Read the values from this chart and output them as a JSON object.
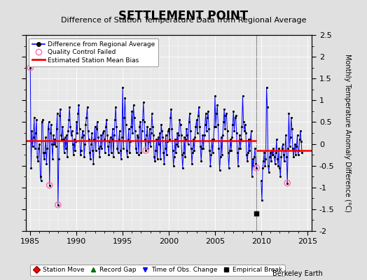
{
  "title": "SETTLEMENT POINT",
  "subtitle": "Difference of Station Temperature Data from Regional Average",
  "ylabel": "Monthly Temperature Anomaly Difference (°C)",
  "xlim": [
    1984.5,
    2015.5
  ],
  "ylim": [
    -2.0,
    2.5
  ],
  "yticks": [
    -2,
    -1.5,
    -1,
    -0.5,
    0,
    0.5,
    1,
    1.5,
    2,
    2.5
  ],
  "xticks": [
    1985,
    1990,
    1995,
    2000,
    2005,
    2010,
    2015
  ],
  "break_year": 2009.5,
  "bias1": 0.07,
  "bias2": -0.15,
  "bias1_start": 1984.5,
  "bias1_end": 2009.5,
  "bias2_start": 2009.5,
  "bias2_end": 2015.5,
  "empirical_break_x": 2009.5,
  "empirical_break_y": -1.6,
  "fig_facecolor": "#e0e0e0",
  "ax_facecolor": "#e8e8e8",
  "line_color": "#0000ff",
  "dot_color": "#000000",
  "bias_color": "#ff0000",
  "qc_color": "#ff69b4",
  "grid_color": "#ffffff",
  "watermark": "Berkeley Earth",
  "time_series": [
    [
      1985.0,
      1.75
    ],
    [
      1985.083,
      -0.55
    ],
    [
      1985.167,
      0.3
    ],
    [
      1985.25,
      -0.05
    ],
    [
      1985.333,
      0.15
    ],
    [
      1985.417,
      0.6
    ],
    [
      1985.5,
      -0.1
    ],
    [
      1985.583,
      0.25
    ],
    [
      1985.667,
      0.55
    ],
    [
      1985.75,
      -0.3
    ],
    [
      1985.833,
      -0.4
    ],
    [
      1985.917,
      -0.1
    ],
    [
      1986.0,
      0.0
    ],
    [
      1986.083,
      -0.75
    ],
    [
      1986.167,
      -0.85
    ],
    [
      1986.25,
      0.5
    ],
    [
      1986.333,
      0.55
    ],
    [
      1986.417,
      -0.2
    ],
    [
      1986.5,
      -0.35
    ],
    [
      1986.583,
      -0.2
    ],
    [
      1986.667,
      0.15
    ],
    [
      1986.75,
      -0.45
    ],
    [
      1986.833,
      -0.1
    ],
    [
      1986.917,
      0.35
    ],
    [
      1987.0,
      0.5
    ],
    [
      1987.083,
      -0.95
    ],
    [
      1987.167,
      0.25
    ],
    [
      1987.25,
      0.45
    ],
    [
      1987.333,
      0.0
    ],
    [
      1987.417,
      -0.35
    ],
    [
      1987.5,
      0.2
    ],
    [
      1987.583,
      0.0
    ],
    [
      1987.667,
      0.1
    ],
    [
      1987.75,
      -0.05
    ],
    [
      1987.833,
      0.35
    ],
    [
      1987.917,
      0.7
    ],
    [
      1988.0,
      -1.4
    ],
    [
      1988.083,
      -0.35
    ],
    [
      1988.167,
      0.65
    ],
    [
      1988.25,
      0.8
    ],
    [
      1988.333,
      0.2
    ],
    [
      1988.417,
      0.1
    ],
    [
      1988.5,
      0.4
    ],
    [
      1988.583,
      0.1
    ],
    [
      1988.667,
      -0.2
    ],
    [
      1988.75,
      0.15
    ],
    [
      1988.833,
      -0.1
    ],
    [
      1988.917,
      0.2
    ],
    [
      1989.0,
      -0.3
    ],
    [
      1989.083,
      0.3
    ],
    [
      1989.167,
      0.55
    ],
    [
      1989.25,
      0.85
    ],
    [
      1989.333,
      0.4
    ],
    [
      1989.417,
      0.2
    ],
    [
      1989.5,
      0.3
    ],
    [
      1989.583,
      0.0
    ],
    [
      1989.667,
      -0.25
    ],
    [
      1989.75,
      0.1
    ],
    [
      1989.833,
      -0.15
    ],
    [
      1989.917,
      0.05
    ],
    [
      1990.0,
      0.5
    ],
    [
      1990.083,
      0.25
    ],
    [
      1990.167,
      0.7
    ],
    [
      1990.25,
      0.9
    ],
    [
      1990.333,
      0.35
    ],
    [
      1990.417,
      -0.25
    ],
    [
      1990.5,
      -0.15
    ],
    [
      1990.583,
      0.15
    ],
    [
      1990.667,
      0.3
    ],
    [
      1990.75,
      0.2
    ],
    [
      1990.833,
      -0.3
    ],
    [
      1990.917,
      0.0
    ],
    [
      1991.0,
      0.45
    ],
    [
      1991.083,
      0.6
    ],
    [
      1991.167,
      0.85
    ],
    [
      1991.25,
      0.3
    ],
    [
      1991.333,
      0.1
    ],
    [
      1991.417,
      -0.2
    ],
    [
      1991.5,
      -0.35
    ],
    [
      1991.583,
      0.0
    ],
    [
      1991.667,
      0.25
    ],
    [
      1991.75,
      -0.15
    ],
    [
      1991.833,
      -0.45
    ],
    [
      1991.917,
      0.1
    ],
    [
      1992.0,
      0.4
    ],
    [
      1992.083,
      -0.15
    ],
    [
      1992.167,
      0.35
    ],
    [
      1992.25,
      0.5
    ],
    [
      1992.333,
      0.15
    ],
    [
      1992.417,
      -0.1
    ],
    [
      1992.5,
      -0.3
    ],
    [
      1992.583,
      -0.05
    ],
    [
      1992.667,
      0.2
    ],
    [
      1992.75,
      -0.1
    ],
    [
      1992.833,
      0.25
    ],
    [
      1992.917,
      0.3
    ],
    [
      1993.0,
      0.1
    ],
    [
      1993.083,
      -0.2
    ],
    [
      1993.167,
      0.4
    ],
    [
      1993.25,
      0.55
    ],
    [
      1993.333,
      0.2
    ],
    [
      1993.417,
      -0.05
    ],
    [
      1993.5,
      -0.25
    ],
    [
      1993.583,
      0.05
    ],
    [
      1993.667,
      0.15
    ],
    [
      1993.75,
      -0.2
    ],
    [
      1993.833,
      0.1
    ],
    [
      1993.917,
      0.35
    ],
    [
      1994.0,
      -0.3
    ],
    [
      1994.083,
      0.2
    ],
    [
      1994.167,
      0.55
    ],
    [
      1994.25,
      0.85
    ],
    [
      1994.333,
      0.4
    ],
    [
      1994.417,
      -0.1
    ],
    [
      1994.5,
      -0.2
    ],
    [
      1994.583,
      0.1
    ],
    [
      1994.667,
      0.3
    ],
    [
      1994.75,
      -0.15
    ],
    [
      1994.833,
      -0.35
    ],
    [
      1994.917,
      0.15
    ],
    [
      1995.0,
      1.3
    ],
    [
      1995.083,
      -0.1
    ],
    [
      1995.167,
      0.6
    ],
    [
      1995.25,
      1.05
    ],
    [
      1995.333,
      0.45
    ],
    [
      1995.417,
      -0.15
    ],
    [
      1995.5,
      -0.3
    ],
    [
      1995.583,
      0.1
    ],
    [
      1995.667,
      0.35
    ],
    [
      1995.75,
      -0.2
    ],
    [
      1995.833,
      0.05
    ],
    [
      1995.917,
      0.4
    ],
    [
      1996.0,
      0.75
    ],
    [
      1996.083,
      0.25
    ],
    [
      1996.167,
      0.9
    ],
    [
      1996.25,
      0.6
    ],
    [
      1996.333,
      0.3
    ],
    [
      1996.417,
      -0.1
    ],
    [
      1996.5,
      -0.2
    ],
    [
      1996.583,
      0.2
    ],
    [
      1996.667,
      0.15
    ],
    [
      1996.75,
      -0.25
    ],
    [
      1996.833,
      0.4
    ],
    [
      1996.917,
      0.5
    ],
    [
      1997.0,
      -0.2
    ],
    [
      1997.083,
      0.3
    ],
    [
      1997.167,
      0.55
    ],
    [
      1997.25,
      0.95
    ],
    [
      1997.333,
      0.5
    ],
    [
      1997.417,
      0.1
    ],
    [
      1997.5,
      -0.15
    ],
    [
      1997.583,
      0.2
    ],
    [
      1997.667,
      0.4
    ],
    [
      1997.75,
      -0.1
    ],
    [
      1997.833,
      0.05
    ],
    [
      1997.917,
      0.35
    ],
    [
      1998.0,
      -0.05
    ],
    [
      1998.083,
      0.25
    ],
    [
      1998.167,
      0.7
    ],
    [
      1998.25,
      0.4
    ],
    [
      1998.333,
      0.2
    ],
    [
      1998.417,
      -0.3
    ],
    [
      1998.5,
      -0.4
    ],
    [
      1998.583,
      -0.15
    ],
    [
      1998.667,
      0.1
    ],
    [
      1998.75,
      -0.35
    ],
    [
      1998.833,
      0.15
    ],
    [
      1998.917,
      0.0
    ],
    [
      1999.0,
      0.25
    ],
    [
      1999.083,
      -0.35
    ],
    [
      1999.167,
      0.45
    ],
    [
      1999.25,
      0.3
    ],
    [
      1999.333,
      0.15
    ],
    [
      1999.417,
      -0.2
    ],
    [
      1999.5,
      -0.45
    ],
    [
      1999.583,
      -0.1
    ],
    [
      1999.667,
      0.2
    ],
    [
      1999.75,
      -0.25
    ],
    [
      1999.833,
      0.05
    ],
    [
      1999.917,
      0.3
    ],
    [
      2000.0,
      0.35
    ],
    [
      2000.083,
      0.1
    ],
    [
      2000.167,
      0.6
    ],
    [
      2000.25,
      0.8
    ],
    [
      2000.333,
      0.35
    ],
    [
      2000.417,
      -0.15
    ],
    [
      2000.5,
      -0.5
    ],
    [
      2000.583,
      -0.3
    ],
    [
      2000.667,
      0.1
    ],
    [
      2000.75,
      -0.2
    ],
    [
      2000.833,
      0.0
    ],
    [
      2000.917,
      0.25
    ],
    [
      2001.0,
      -0.05
    ],
    [
      2001.083,
      0.2
    ],
    [
      2001.167,
      0.55
    ],
    [
      2001.25,
      0.45
    ],
    [
      2001.333,
      0.2
    ],
    [
      2001.417,
      -0.25
    ],
    [
      2001.5,
      -0.55
    ],
    [
      2001.583,
      -0.2
    ],
    [
      2001.667,
      0.15
    ],
    [
      2001.75,
      -0.3
    ],
    [
      2001.833,
      0.1
    ],
    [
      2001.917,
      0.35
    ],
    [
      2002.0,
      0.2
    ],
    [
      2002.083,
      0.0
    ],
    [
      2002.167,
      0.5
    ],
    [
      2002.25,
      0.7
    ],
    [
      2002.333,
      0.3
    ],
    [
      2002.417,
      -0.1
    ],
    [
      2002.5,
      -0.45
    ],
    [
      2002.583,
      -0.2
    ],
    [
      2002.667,
      0.1
    ],
    [
      2002.75,
      -0.15
    ],
    [
      2002.833,
      0.15
    ],
    [
      2002.917,
      0.4
    ],
    [
      2003.0,
      0.55
    ],
    [
      2003.083,
      0.25
    ],
    [
      2003.167,
      0.65
    ],
    [
      2003.25,
      0.85
    ],
    [
      2003.333,
      0.4
    ],
    [
      2003.417,
      -0.05
    ],
    [
      2003.5,
      -0.4
    ],
    [
      2003.583,
      -0.1
    ],
    [
      2003.667,
      0.2
    ],
    [
      2003.75,
      -0.1
    ],
    [
      2003.833,
      0.2
    ],
    [
      2003.917,
      0.45
    ],
    [
      2004.0,
      0.7
    ],
    [
      2004.083,
      0.3
    ],
    [
      2004.167,
      0.6
    ],
    [
      2004.25,
      0.75
    ],
    [
      2004.333,
      0.35
    ],
    [
      2004.417,
      -0.15
    ],
    [
      2004.5,
      -0.5
    ],
    [
      2004.583,
      -0.25
    ],
    [
      2004.667,
      0.1
    ],
    [
      2004.75,
      -0.2
    ],
    [
      2004.833,
      0.1
    ],
    [
      2004.917,
      0.4
    ],
    [
      2005.0,
      1.1
    ],
    [
      2005.083,
      0.4
    ],
    [
      2005.167,
      0.7
    ],
    [
      2005.25,
      0.9
    ],
    [
      2005.333,
      0.45
    ],
    [
      2005.417,
      -0.1
    ],
    [
      2005.5,
      -0.6
    ],
    [
      2005.583,
      -0.3
    ],
    [
      2005.667,
      0.15
    ],
    [
      2005.75,
      -0.25
    ],
    [
      2005.833,
      0.2
    ],
    [
      2005.917,
      0.5
    ],
    [
      2006.0,
      0.8
    ],
    [
      2006.083,
      0.35
    ],
    [
      2006.167,
      0.65
    ],
    [
      2006.25,
      0.7
    ],
    [
      2006.333,
      0.3
    ],
    [
      2006.417,
      -0.2
    ],
    [
      2006.5,
      -0.55
    ],
    [
      2006.583,
      -0.15
    ],
    [
      2006.667,
      0.1
    ],
    [
      2006.75,
      -0.15
    ],
    [
      2006.833,
      0.15
    ],
    [
      2006.917,
      0.45
    ],
    [
      2007.0,
      0.75
    ],
    [
      2007.083,
      0.3
    ],
    [
      2007.167,
      0.6
    ],
    [
      2007.25,
      0.65
    ],
    [
      2007.333,
      0.25
    ],
    [
      2007.417,
      -0.2
    ],
    [
      2007.5,
      -0.5
    ],
    [
      2007.583,
      -0.1
    ],
    [
      2007.667,
      0.2
    ],
    [
      2007.75,
      -0.1
    ],
    [
      2007.833,
      0.1
    ],
    [
      2007.917,
      0.4
    ],
    [
      2008.0,
      1.1
    ],
    [
      2008.083,
      0.5
    ],
    [
      2008.167,
      0.3
    ],
    [
      2008.25,
      0.45
    ],
    [
      2008.333,
      0.25
    ],
    [
      2008.417,
      -0.25
    ],
    [
      2008.5,
      -0.4
    ],
    [
      2008.583,
      -0.2
    ],
    [
      2008.667,
      0.1
    ],
    [
      2008.75,
      -0.15
    ],
    [
      2008.833,
      0.1
    ],
    [
      2008.917,
      0.3
    ],
    [
      2009.0,
      -0.75
    ],
    [
      2009.083,
      -0.35
    ],
    [
      2009.167,
      -0.5
    ],
    [
      2009.25,
      -0.3
    ],
    [
      2009.333,
      -0.1
    ],
    [
      2009.417,
      -0.45
    ],
    [
      2009.5,
      -0.55
    ],
    [
      2010.0,
      -0.85
    ],
    [
      2010.083,
      -1.3
    ],
    [
      2010.167,
      -0.55
    ],
    [
      2010.25,
      -0.4
    ],
    [
      2010.333,
      -0.2
    ],
    [
      2010.417,
      -0.5
    ],
    [
      2010.5,
      -0.35
    ],
    [
      2010.583,
      1.3
    ],
    [
      2010.667,
      0.85
    ],
    [
      2010.75,
      -0.5
    ],
    [
      2010.833,
      -0.65
    ],
    [
      2010.917,
      -0.3
    ],
    [
      2011.0,
      -0.2
    ],
    [
      2011.083,
      -0.4
    ],
    [
      2011.167,
      -0.15
    ],
    [
      2011.25,
      -0.25
    ],
    [
      2011.333,
      -0.1
    ],
    [
      2011.417,
      -0.3
    ],
    [
      2011.5,
      -0.45
    ],
    [
      2011.583,
      -0.2
    ],
    [
      2011.667,
      0.1
    ],
    [
      2011.75,
      -0.35
    ],
    [
      2011.833,
      -0.5
    ],
    [
      2011.917,
      -0.1
    ],
    [
      2012.0,
      -0.55
    ],
    [
      2012.083,
      -0.75
    ],
    [
      2012.167,
      -0.3
    ],
    [
      2012.25,
      -0.1
    ],
    [
      2012.333,
      0.0
    ],
    [
      2012.417,
      -0.25
    ],
    [
      2012.5,
      -0.4
    ],
    [
      2012.583,
      -0.15
    ],
    [
      2012.667,
      0.2
    ],
    [
      2012.75,
      -0.3
    ],
    [
      2012.833,
      -0.9
    ],
    [
      2012.917,
      -0.1
    ],
    [
      2013.0,
      0.7
    ],
    [
      2013.083,
      -0.05
    ],
    [
      2013.167,
      0.15
    ],
    [
      2013.25,
      0.6
    ],
    [
      2013.333,
      0.35
    ],
    [
      2013.417,
      -0.1
    ],
    [
      2013.5,
      -0.3
    ],
    [
      2013.583,
      -0.15
    ],
    [
      2013.667,
      0.0
    ],
    [
      2013.75,
      -0.25
    ],
    [
      2013.833,
      -0.05
    ],
    [
      2013.917,
      0.2
    ],
    [
      2014.0,
      -0.25
    ],
    [
      2014.083,
      -0.15
    ],
    [
      2014.167,
      0.1
    ],
    [
      2014.25,
      0.3
    ],
    [
      2014.333,
      0.05
    ],
    [
      2014.417,
      -0.2
    ]
  ],
  "qc_failed": [
    [
      1985.0,
      1.75
    ],
    [
      1987.083,
      -0.95
    ],
    [
      1988.0,
      -1.4
    ],
    [
      1997.5,
      -0.15
    ],
    [
      2009.5,
      -0.55
    ],
    [
      2012.833,
      -0.9
    ]
  ],
  "legend1_loc": "upper left",
  "legend2_items": [
    "Station Move",
    "Record Gap",
    "Time of Obs. Change",
    "Empirical Break"
  ]
}
